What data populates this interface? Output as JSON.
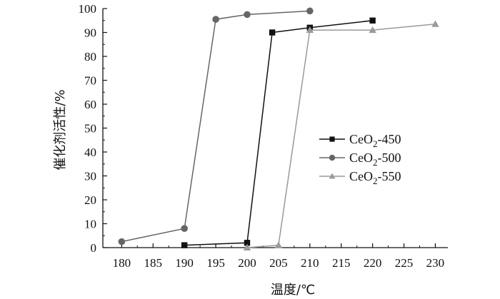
{
  "chart_data": {
    "type": "line",
    "title": "",
    "xlabel": "温度/℃",
    "ylabel": "催化剂活性/%",
    "xlim": [
      177,
      232
    ],
    "ylim": [
      0,
      100
    ],
    "xticks": [
      180,
      185,
      190,
      195,
      200,
      205,
      210,
      215,
      220,
      225,
      230
    ],
    "yticks": [
      0,
      10,
      20,
      30,
      40,
      50,
      60,
      70,
      80,
      90,
      100
    ],
    "grid": false,
    "legend_position": "right",
    "series": [
      {
        "name": "CeO₂-450",
        "legend_base": "CeO",
        "legend_sub": "2",
        "legend_suffix": "-450",
        "marker": "square",
        "color": "#111111",
        "x": [
          190,
          200,
          204,
          210,
          220
        ],
        "y": [
          1,
          2,
          90,
          92,
          95
        ]
      },
      {
        "name": "CeO₂-500",
        "legend_base": "CeO",
        "legend_sub": "2",
        "legend_suffix": "-500",
        "marker": "circle",
        "color": "#666666",
        "x": [
          180,
          190,
          195,
          200,
          210
        ],
        "y": [
          2.5,
          8,
          95.5,
          97.5,
          99
        ]
      },
      {
        "name": "CeO₂-550",
        "legend_base": "CeO",
        "legend_sub": "2",
        "legend_suffix": "-550",
        "marker": "triangle",
        "color": "#9a9a9a",
        "x": [
          200,
          205,
          210,
          220,
          230
        ],
        "y": [
          0,
          1,
          91,
          91,
          93.5
        ]
      }
    ]
  }
}
